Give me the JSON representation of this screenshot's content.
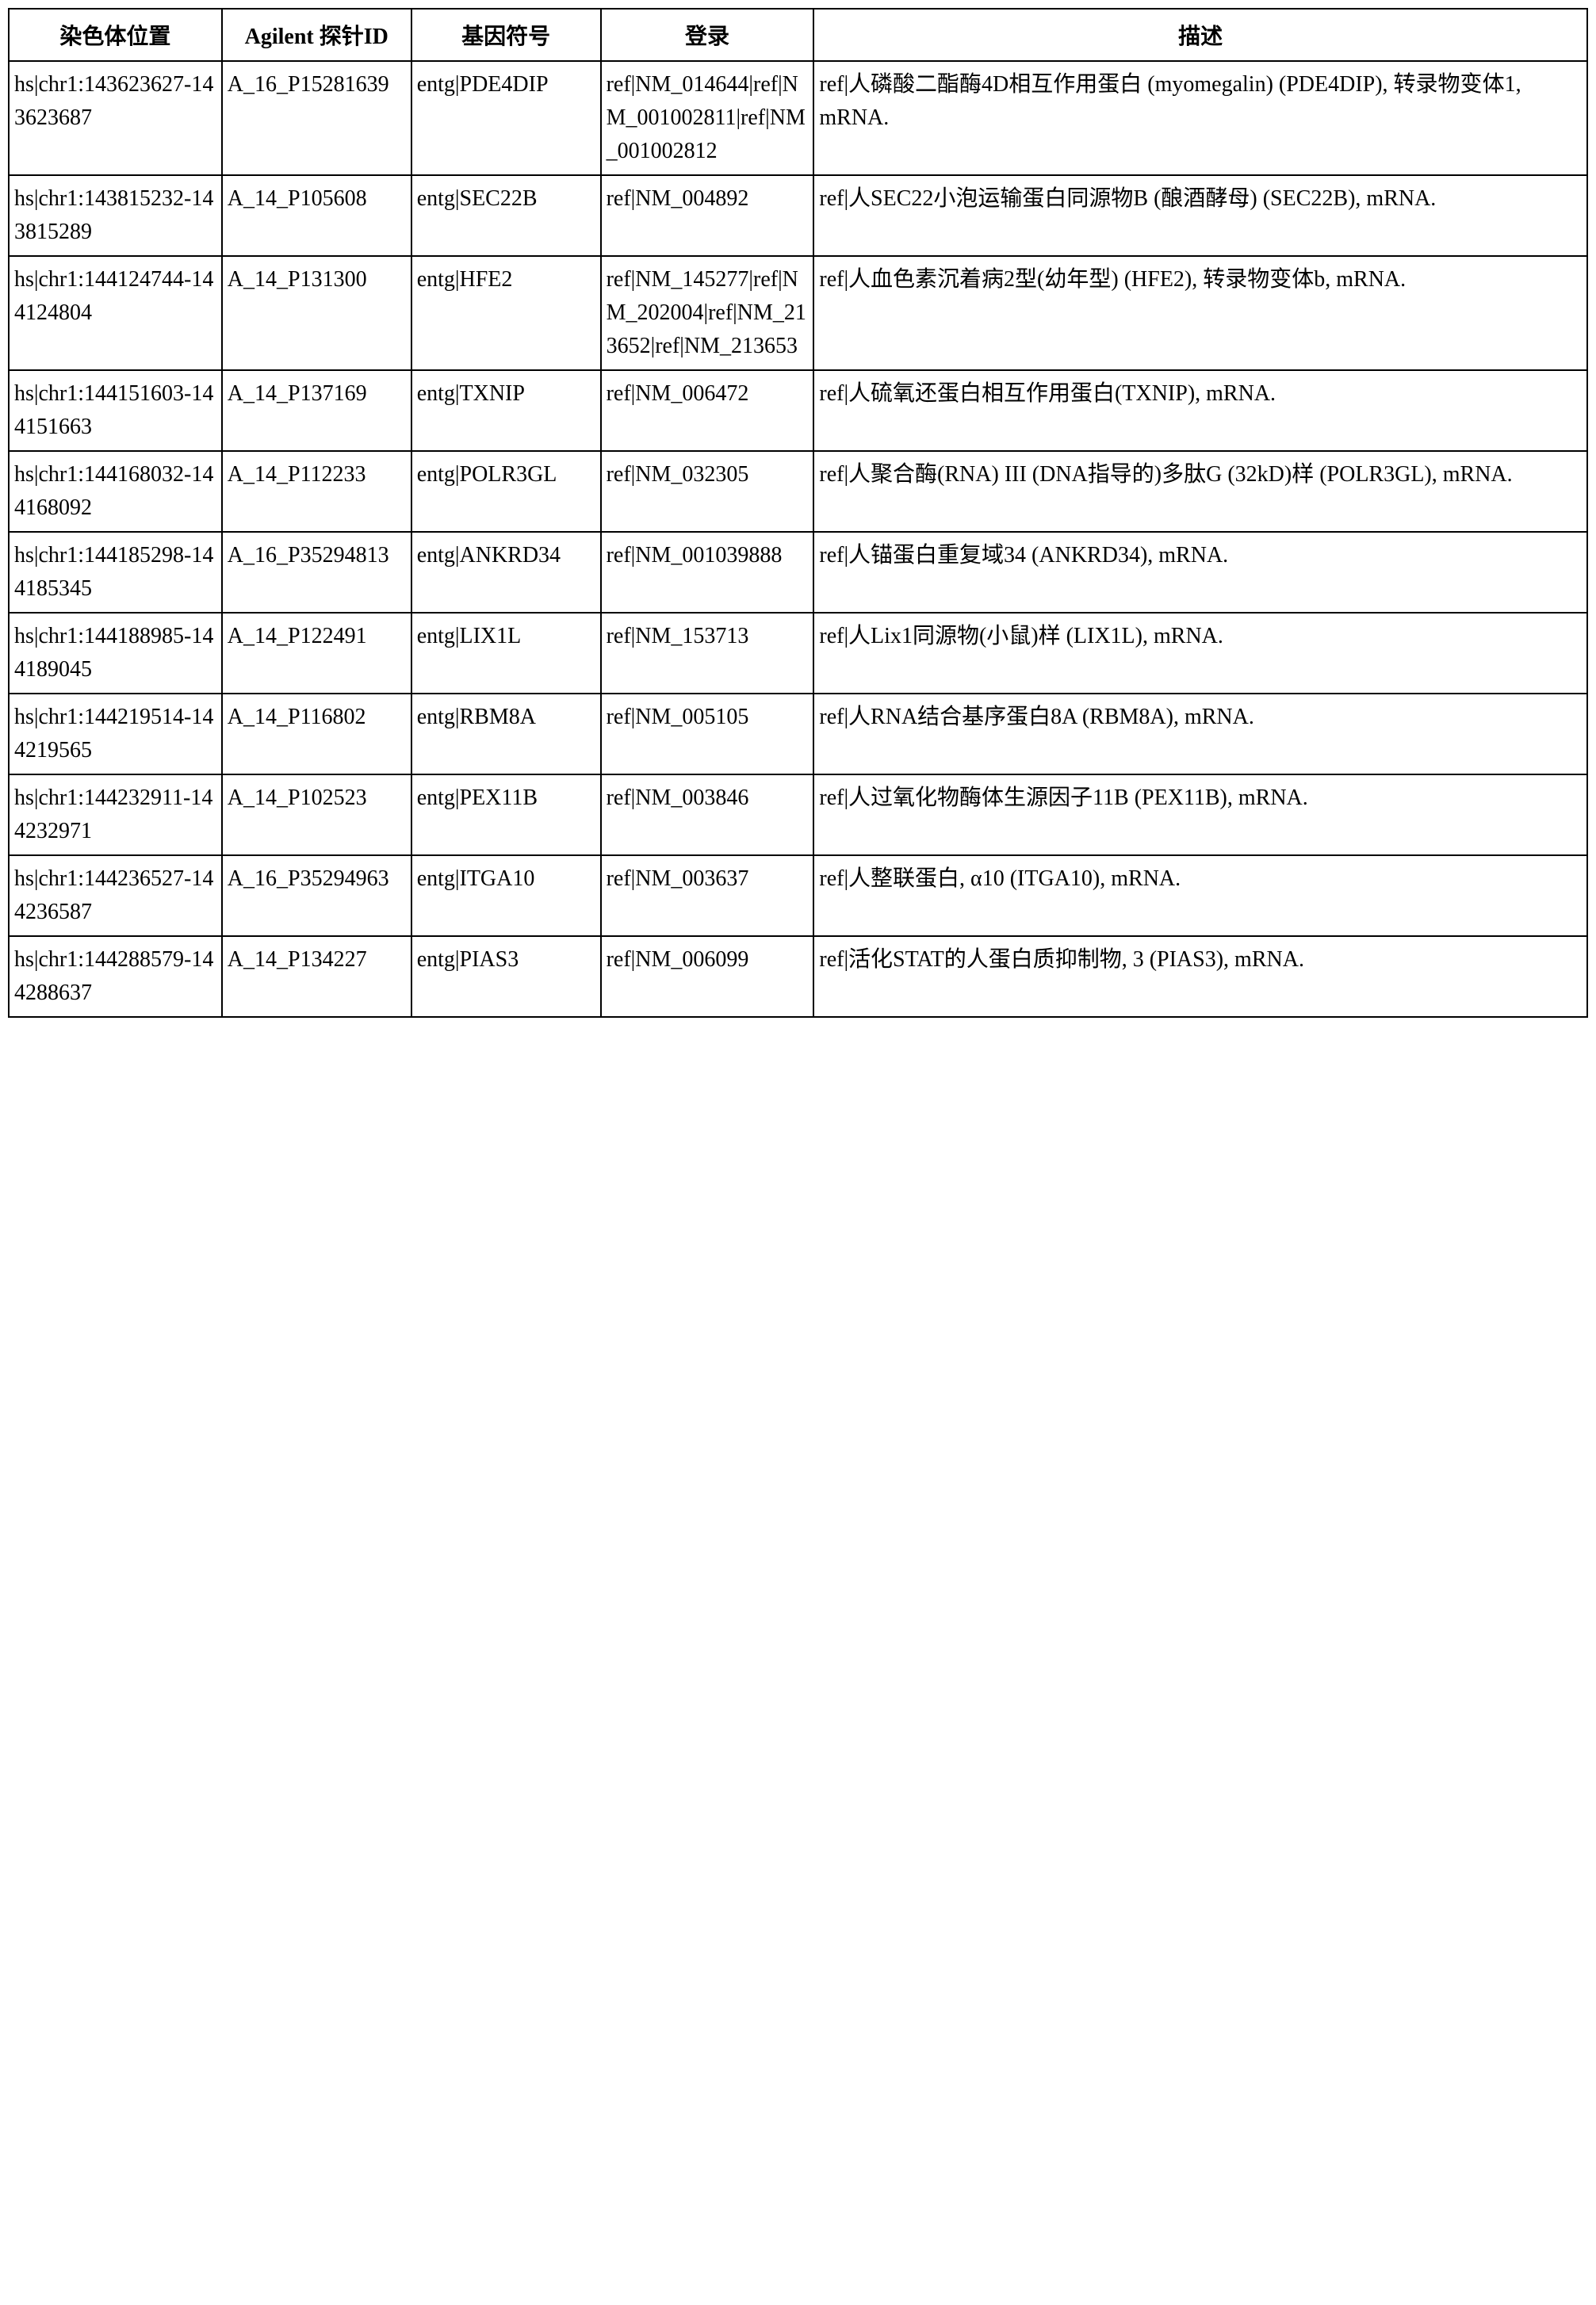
{
  "headers": {
    "chromosome": "染色体位置",
    "probe_id": "Agilent 探针ID",
    "gene_symbol": "基因符号",
    "accession": "登录",
    "description": "描述"
  },
  "rows": [
    {
      "chromosome": "hs|chr1:143623627-143623687",
      "probe_id": "A_16_P15281639",
      "gene_symbol": "entg|PDE4DIP",
      "accession": "ref|NM_014644|ref|NM_001002811|ref|NM_001002812",
      "description": "ref|人磷酸二酯酶4D相互作用蛋白 (myomegalin) (PDE4DIP), 转录物变体1, mRNA."
    },
    {
      "chromosome": "hs|chr1:143815232-143815289",
      "probe_id": "A_14_P105608",
      "gene_symbol": "entg|SEC22B",
      "accession": "ref|NM_004892",
      "description": "ref|人SEC22小泡运输蛋白同源物B (酿酒酵母) (SEC22B), mRNA."
    },
    {
      "chromosome": "hs|chr1:144124744-144124804",
      "probe_id": "A_14_P131300",
      "gene_symbol": "entg|HFE2",
      "accession": "ref|NM_145277|ref|NM_202004|ref|NM_213652|ref|NM_213653",
      "description": "ref|人血色素沉着病2型(幼年型) (HFE2), 转录物变体b, mRNA."
    },
    {
      "chromosome": "hs|chr1:144151603-144151663",
      "probe_id": "A_14_P137169",
      "gene_symbol": "entg|TXNIP",
      "accession": "ref|NM_006472",
      "description": "ref|人硫氧还蛋白相互作用蛋白(TXNIP), mRNA."
    },
    {
      "chromosome": "hs|chr1:144168032-144168092",
      "probe_id": "A_14_P112233",
      "gene_symbol": "entg|POLR3GL",
      "accession": "ref|NM_032305",
      "description": "ref|人聚合酶(RNA) III (DNA指导的)多肽G (32kD)样 (POLR3GL), mRNA."
    },
    {
      "chromosome": "hs|chr1:144185298-144185345",
      "probe_id": "A_16_P35294813",
      "gene_symbol": "entg|ANKRD34",
      "accession": "ref|NM_001039888",
      "description": "ref|人锚蛋白重复域34 (ANKRD34), mRNA."
    },
    {
      "chromosome": "hs|chr1:144188985-144189045",
      "probe_id": "A_14_P122491",
      "gene_symbol": "entg|LIX1L",
      "accession": "ref|NM_153713",
      "description": "ref|人Lix1同源物(小鼠)样 (LIX1L), mRNA."
    },
    {
      "chromosome": "hs|chr1:144219514-144219565",
      "probe_id": "A_14_P116802",
      "gene_symbol": "entg|RBM8A",
      "accession": "ref|NM_005105",
      "description": "ref|人RNA结合基序蛋白8A (RBM8A), mRNA."
    },
    {
      "chromosome": "hs|chr1:144232911-144232971",
      "probe_id": "A_14_P102523",
      "gene_symbol": "entg|PEX11B",
      "accession": "ref|NM_003846",
      "description": "ref|人过氧化物酶体生源因子11B (PEX11B), mRNA."
    },
    {
      "chromosome": "hs|chr1:144236527-144236587",
      "probe_id": "A_16_P35294963",
      "gene_symbol": "entg|ITGA10",
      "accession": "ref|NM_003637",
      "description": "ref|人整联蛋白, α10 (ITGA10), mRNA."
    },
    {
      "chromosome": "hs|chr1:144288579-144288637",
      "probe_id": "A_14_P134227",
      "gene_symbol": "entg|PIAS3",
      "accession": "ref|NM_006099",
      "description": "ref|活化STAT的人蛋白质抑制物, 3 (PIAS3), mRNA."
    }
  ],
  "styling": {
    "border_color": "#000000",
    "border_width": 2,
    "background_color": "#ffffff",
    "header_fontsize": 28,
    "cell_fontsize": 28,
    "font_family_cjk": "SimSun",
    "font_family_latin": "Times New Roman",
    "column_widths_pct": [
      13.5,
      12,
      12,
      13.5,
      49
    ]
  }
}
